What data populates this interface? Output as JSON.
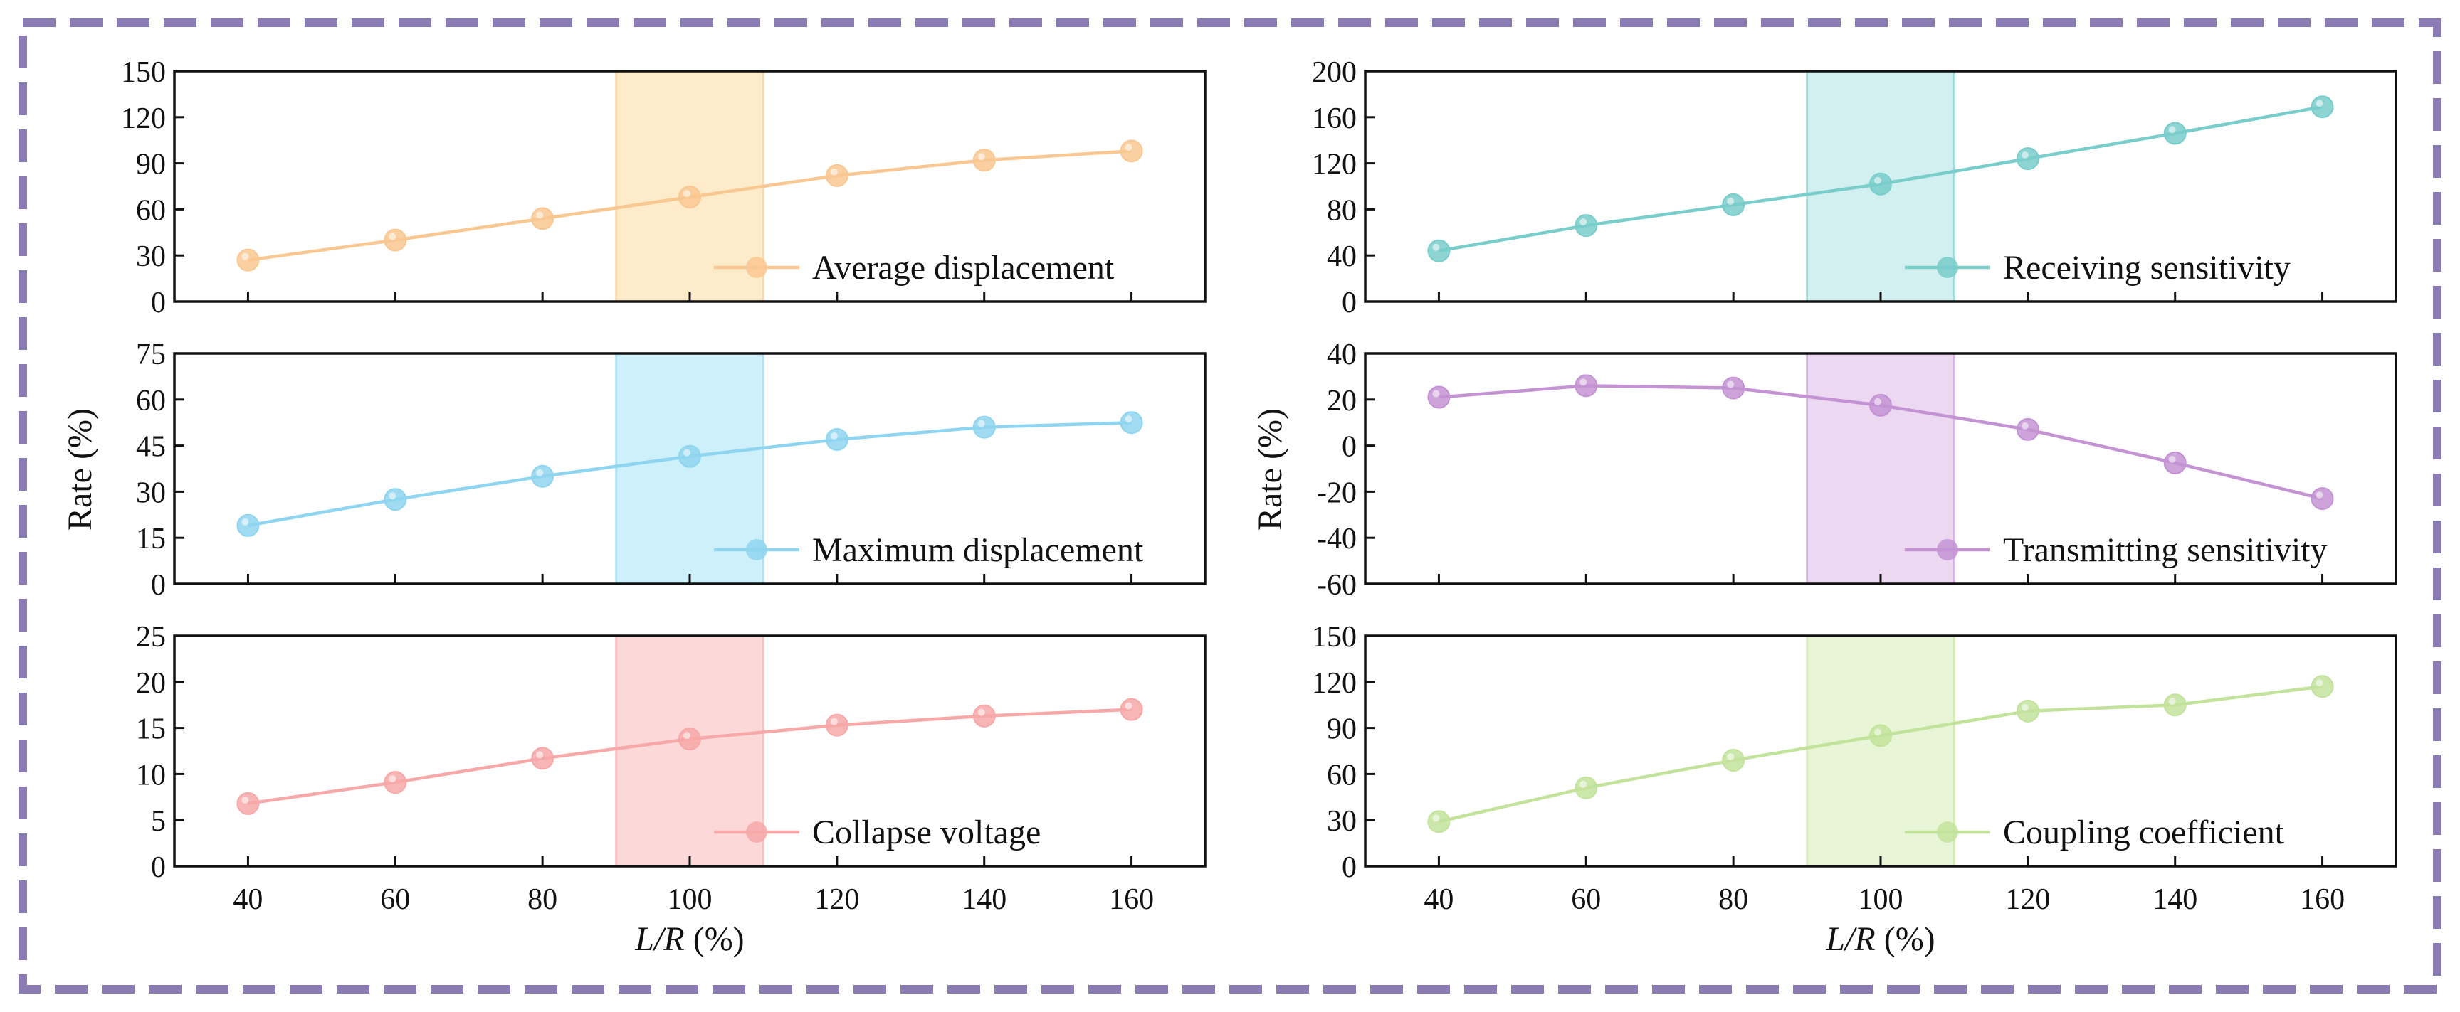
{
  "colors": {
    "border": "#8b7bb3",
    "axis": "#111111"
  },
  "highlight_band": [
    90,
    110
  ],
  "chart_data": [
    {
      "type": "line",
      "name": "average-displacement",
      "x": [
        40,
        60,
        80,
        100,
        120,
        140,
        160
      ],
      "values": [
        27,
        40,
        54,
        68,
        82,
        92,
        98
      ],
      "legend": "Average displacement",
      "ylim": [
        0,
        150
      ],
      "yticks": [
        "0",
        "30",
        "60",
        "90",
        "120",
        "150"
      ],
      "xlim": [
        30,
        170
      ],
      "xticks": [],
      "ylabel": "",
      "xlabel": "",
      "color": "#f9c892",
      "band_color": "#fde9c4"
    },
    {
      "type": "line",
      "name": "receiving-sensitivity",
      "x": [
        40,
        60,
        80,
        100,
        120,
        140,
        160
      ],
      "values": [
        44,
        66,
        84,
        102,
        124,
        146,
        169
      ],
      "legend": "Receiving sensitivity",
      "ylim": [
        0,
        200
      ],
      "yticks": [
        "0",
        "40",
        "80",
        "120",
        "160",
        "200"
      ],
      "xlim": [
        30,
        170
      ],
      "xticks": [],
      "ylabel": "",
      "xlabel": "",
      "color": "#79cdcb",
      "band_color": "#cdeeee"
    },
    {
      "type": "line",
      "name": "maximum-displacement",
      "x": [
        40,
        60,
        80,
        100,
        120,
        140,
        160
      ],
      "values": [
        19,
        27.5,
        35,
        41.5,
        47,
        51,
        52.5
      ],
      "legend": "Maximum displacement",
      "ylim": [
        0,
        75
      ],
      "yticks": [
        "0",
        "15",
        "30",
        "45",
        "60",
        "75"
      ],
      "xlim": [
        30,
        170
      ],
      "xticks": [],
      "ylabel": "Rate (%)",
      "xlabel": "",
      "color": "#8fd5ef",
      "band_color": "#c8eefb"
    },
    {
      "type": "line",
      "name": "transmitting-sensitivity",
      "x": [
        40,
        60,
        80,
        100,
        120,
        140,
        160
      ],
      "values": [
        21,
        26,
        25,
        17.5,
        7,
        -7.5,
        -23
      ],
      "legend": "Transmitting sensitivity",
      "ylim": [
        -60,
        40
      ],
      "yticks": [
        "-60",
        "-40",
        "-20",
        "0",
        "20",
        "40"
      ],
      "xlim": [
        30,
        170
      ],
      "xticks": [],
      "ylabel": "Rate (%)",
      "xlabel": "",
      "color": "#c493d4",
      "band_color": "#ead5ef"
    },
    {
      "type": "line",
      "name": "collapse-voltage",
      "x": [
        40,
        60,
        80,
        100,
        120,
        140,
        160
      ],
      "values": [
        6.8,
        9.1,
        11.7,
        13.8,
        15.3,
        16.3,
        17
      ],
      "legend": "Collapse voltage",
      "ylim": [
        0,
        25
      ],
      "yticks": [
        "0",
        "5",
        "10",
        "15",
        "20",
        "25"
      ],
      "xlim": [
        30,
        170
      ],
      "xticks": [
        "40",
        "60",
        "80",
        "100",
        "120",
        "140",
        "160"
      ],
      "ylabel": "",
      "xlabel": "L/R (%)",
      "color": "#f7a8a8",
      "band_color": "#fcd4d4"
    },
    {
      "type": "line",
      "name": "coupling-coefficient",
      "x": [
        40,
        60,
        80,
        100,
        120,
        140,
        160
      ],
      "values": [
        29,
        51,
        69,
        85,
        101,
        105,
        117
      ],
      "legend": "Coupling coefficient",
      "ylim": [
        0,
        150
      ],
      "yticks": [
        "0",
        "30",
        "60",
        "90",
        "120",
        "150"
      ],
      "xlim": [
        30,
        170
      ],
      "xticks": [
        "40",
        "60",
        "80",
        "100",
        "120",
        "140",
        "160"
      ],
      "ylabel": "",
      "xlabel": "L/R (%)",
      "color": "#c3e39c",
      "band_color": "#e6f5d3"
    }
  ]
}
